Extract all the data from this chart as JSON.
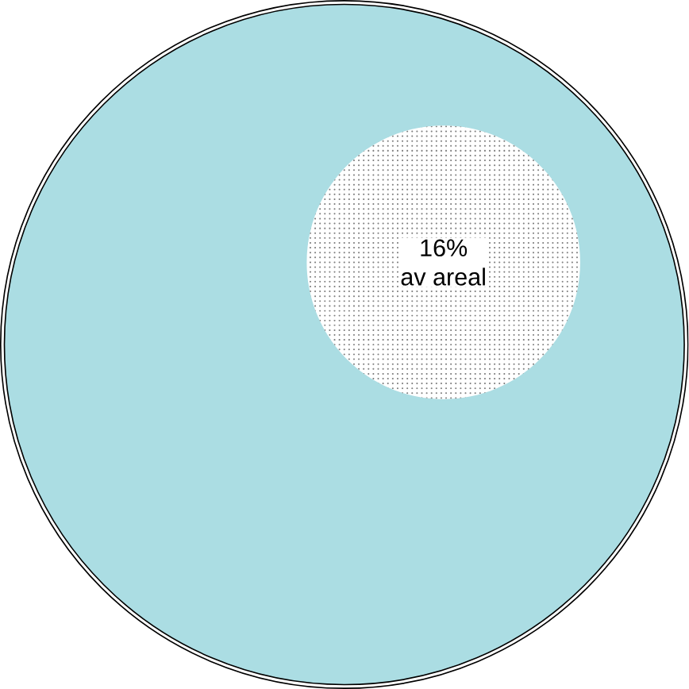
{
  "chart_data": {
    "type": "other",
    "categories": [
      "av areal"
    ],
    "values": [
      16
    ],
    "value_labels": [
      "16%"
    ],
    "color": "#abdde3",
    "colors": [
      "#ffffff"
    ]
  }
}
